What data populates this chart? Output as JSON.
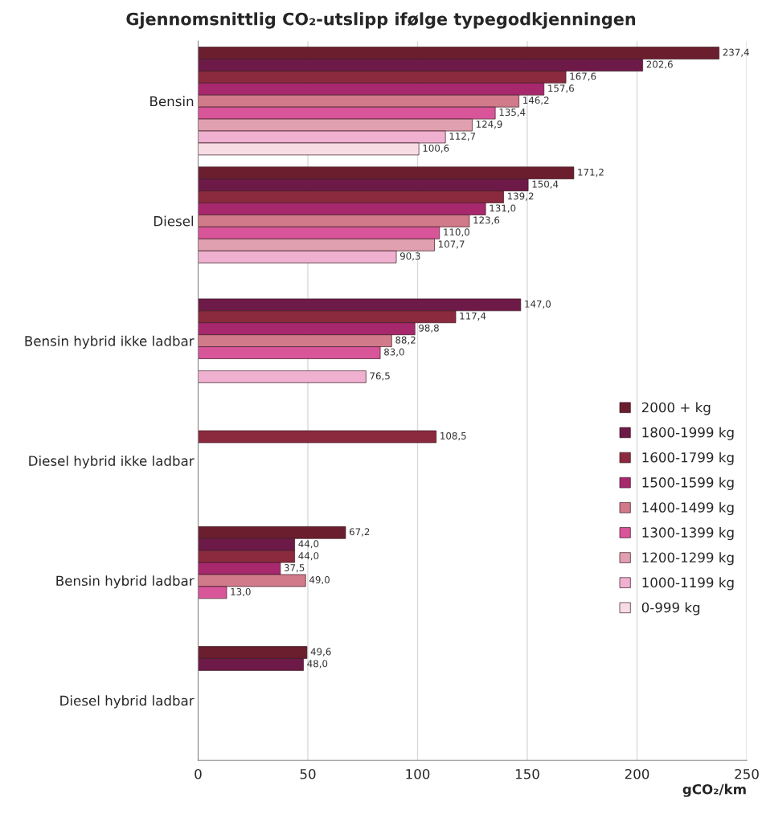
{
  "chart_data": {
    "type": "bar",
    "orientation": "horizontal",
    "title": "Gjennomsnittlig CO₂-utslipp ifølge typegodkjenningen",
    "xlabel": "gCO₂/km",
    "categories": [
      "Bensin",
      "Diesel",
      "Bensin hybrid ikke ladbar",
      "Diesel hybrid ikke ladbar",
      "Bensin hybrid ladbar",
      "Diesel hybrid ladbar"
    ],
    "series": [
      {
        "name": "2000 + kg",
        "color": "#6b1e2e",
        "values": [
          237.4,
          171.2,
          null,
          null,
          67.2,
          49.6
        ],
        "value_labels": [
          "237,4",
          "171,2",
          null,
          null,
          "67,2",
          "49,6"
        ]
      },
      {
        "name": "1800-1999 kg",
        "color": "#6e1a48",
        "values": [
          202.6,
          150.4,
          147.0,
          null,
          44.0,
          48.0
        ],
        "value_labels": [
          "202,6",
          "150,4",
          "147,0",
          null,
          "44,0",
          "48,0"
        ]
      },
      {
        "name": "1600-1799 kg",
        "color": "#8b2a3e",
        "values": [
          167.6,
          139.2,
          117.4,
          108.5,
          44.0,
          null
        ],
        "value_labels": [
          "167,6",
          "139,2",
          "117,4",
          "108,5",
          "44,0",
          null
        ]
      },
      {
        "name": "1500-1599 kg",
        "color": "#a8286e",
        "values": [
          157.6,
          131.0,
          98.8,
          null,
          37.5,
          null
        ],
        "value_labels": [
          "157,6",
          "131,0",
          "98,8",
          null,
          "37,5",
          null
        ]
      },
      {
        "name": "1400-1499 kg",
        "color": "#d07a8a",
        "values": [
          146.2,
          123.6,
          88.2,
          null,
          49.0,
          null
        ],
        "value_labels": [
          "146,2",
          "123,6",
          "88,2",
          null,
          "49,0",
          null
        ]
      },
      {
        "name": "1300-1399 kg",
        "color": "#d9559a",
        "values": [
          135.4,
          110.0,
          83.0,
          null,
          13.0,
          null
        ],
        "value_labels": [
          "135,4",
          "110,0",
          "83,0",
          null,
          "13,0",
          null
        ]
      },
      {
        "name": "1200-1299 kg",
        "color": "#e0a0b0",
        "values": [
          124.9,
          107.7,
          null,
          null,
          null,
          null
        ],
        "value_labels": [
          "124,9",
          "107,7",
          null,
          null,
          null,
          null
        ]
      },
      {
        "name": "1000-1199 kg",
        "color": "#f0b0d0",
        "values": [
          112.7,
          90.3,
          76.5,
          null,
          null,
          null
        ],
        "value_labels": [
          "112,7",
          "90,3",
          "76,5",
          null,
          null,
          null
        ]
      },
      {
        "name": "0-999 kg",
        "color": "#f8dce4",
        "values": [
          100.6,
          null,
          null,
          null,
          null,
          null
        ],
        "value_labels": [
          "100,6",
          null,
          null,
          null,
          null,
          null
        ]
      }
    ],
    "xlim": [
      0,
      250
    ],
    "xticks": [
      0,
      50,
      100,
      150,
      200,
      250
    ],
    "grid": "x",
    "legend": "right"
  }
}
